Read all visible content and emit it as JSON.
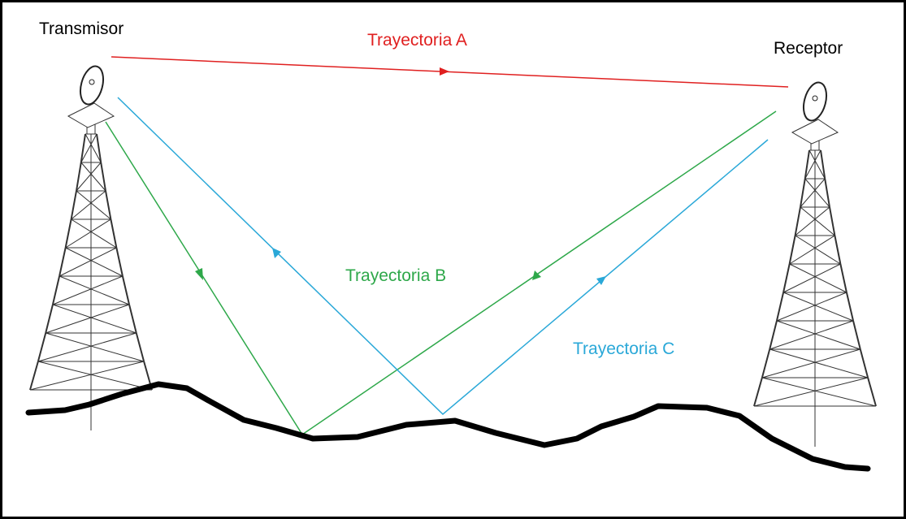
{
  "labels": {
    "transmitter": "Transmisor",
    "receiver": "Receptor",
    "path_a": "Trayectoria A",
    "path_b": "Trayectoria B",
    "path_c": "Trayectoria C"
  }
}
